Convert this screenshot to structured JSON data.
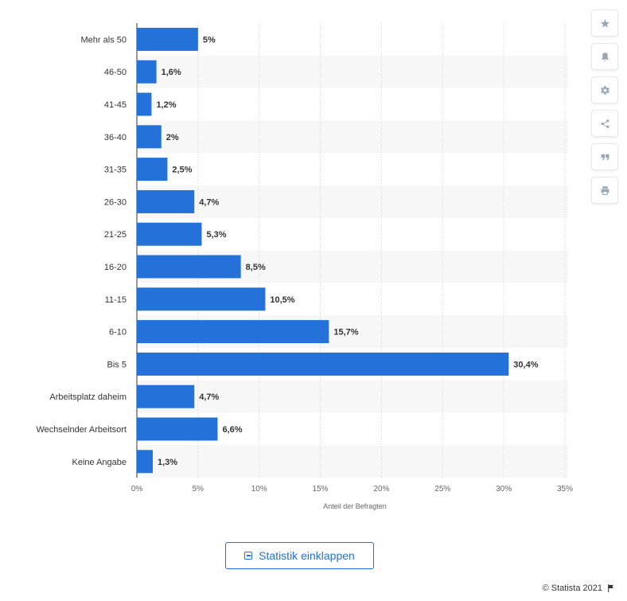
{
  "chart_data": {
    "type": "bar",
    "orientation": "horizontal",
    "categories": [
      "Mehr als 50",
      "46-50",
      "41-45",
      "36-40",
      "31-35",
      "26-30",
      "21-25",
      "16-20",
      "11-15",
      "6-10",
      "Bis 5",
      "Arbeitsplatz daheim",
      "Wechselnder Arbeitsort",
      "Keine Angabe"
    ],
    "values": [
      5,
      1.6,
      1.2,
      2,
      2.5,
      4.7,
      5.3,
      8.5,
      10.5,
      15.7,
      30.4,
      4.7,
      6.6,
      1.3
    ],
    "value_labels": [
      "5%",
      "1,6%",
      "1,2%",
      "2%",
      "2,5%",
      "4,7%",
      "5,3%",
      "8,5%",
      "10,5%",
      "15,7%",
      "30,4%",
      "4,7%",
      "6,6%",
      "1,3%"
    ],
    "x_ticks": [
      "0%",
      "5%",
      "10%",
      "15%",
      "20%",
      "25%",
      "30%",
      "35%"
    ],
    "xlim": [
      0,
      35
    ],
    "xlabel": "Anteil der Befragten",
    "grid": true,
    "colors": {
      "bar": "#2472d9",
      "band": "#f7f7f7",
      "grid": "#cfd3d8"
    }
  },
  "toolbar": {
    "icons": [
      "star-icon",
      "bell-icon",
      "gear-icon",
      "share-icon",
      "quote-icon",
      "print-icon"
    ]
  },
  "collapse_button": {
    "label": "Statistik einklappen"
  },
  "footer": {
    "copyright": "© Statista 2021"
  }
}
